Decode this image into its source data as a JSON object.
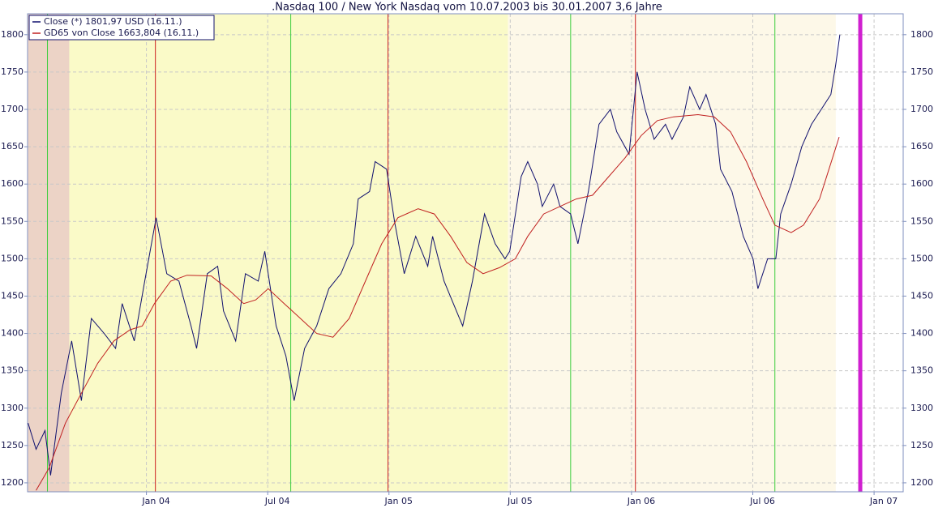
{
  "chart_data": {
    "type": "line",
    "title": ".Nasdaq 100 / New York Nasdaq vom 10.07.2003 bis 30.01.2007 3,6 Jahre",
    "xlim": [
      2003.51,
      2007.12
    ],
    "ylim": [
      1188,
      1828
    ],
    "xticks": [
      {
        "value": 2004,
        "label": "Jan 04"
      },
      {
        "value": 2004.5,
        "label": "Jul 04"
      },
      {
        "value": 2005,
        "label": "Jan 05"
      },
      {
        "value": 2005.5,
        "label": "Jul 05"
      },
      {
        "value": 2006,
        "label": "Jan 06"
      },
      {
        "value": 2006.5,
        "label": "Jul 06"
      },
      {
        "value": 2007,
        "label": "Jan 07"
      }
    ],
    "yticks": [
      1200,
      1250,
      1300,
      1350,
      1400,
      1450,
      1500,
      1550,
      1600,
      1650,
      1700,
      1750,
      1800
    ],
    "grid": true,
    "legend": "top-left",
    "bands": [
      {
        "from": 2003.512,
        "to": 2003.682,
        "color": "#ecd3c6"
      },
      {
        "from": 2003.682,
        "to": 2005.491,
        "color": "#fafac8"
      },
      {
        "from": 2005.491,
        "to": 2006.842,
        "color": "#fdf8e8"
      }
    ],
    "vertical_lines": [
      {
        "x": 2003.592,
        "color": "#3ccd3c"
      },
      {
        "x": 2004.595,
        "color": "#3ccd3c"
      },
      {
        "x": 2005.749,
        "color": "#3ccd3c"
      },
      {
        "x": 2006.591,
        "color": "#3ccd3c"
      },
      {
        "x": 2004.037,
        "color": "#cc2020"
      },
      {
        "x": 2004.996,
        "color": "#cc2020"
      },
      {
        "x": 2006.016,
        "color": "#cc2020"
      },
      {
        "x": 2006.943,
        "color": "#d020d0"
      }
    ],
    "series": [
      {
        "name": "Close (*) 1801,97 USD (16.11.)",
        "color": "#10106e",
        "x": [
          2003.512,
          2003.545,
          2003.582,
          2003.605,
          2003.649,
          2003.692,
          2003.732,
          2003.773,
          2003.826,
          2003.873,
          2003.9,
          2003.95,
          2003.993,
          2004.04,
          2004.084,
          2004.134,
          2004.184,
          2004.207,
          2004.251,
          2004.294,
          2004.318,
          2004.368,
          2004.408,
          2004.461,
          2004.488,
          2004.535,
          2004.575,
          2004.609,
          2004.652,
          2004.702,
          2004.752,
          2004.802,
          2004.853,
          2004.873,
          2004.92,
          2004.943,
          2004.99,
          2005.023,
          2005.063,
          2005.11,
          2005.16,
          2005.18,
          2005.227,
          2005.291,
          2005.304,
          2005.344,
          2005.394,
          2005.438,
          2005.478,
          2005.498,
          2005.545,
          2005.572,
          2005.612,
          2005.632,
          2005.679,
          2005.705,
          2005.749,
          2005.779,
          2005.822,
          2005.866,
          2005.913,
          2005.939,
          2005.99,
          2006.023,
          2006.056,
          2006.093,
          2006.14,
          2006.167,
          2006.214,
          2006.24,
          2006.281,
          2006.307,
          2006.347,
          2006.367,
          2006.414,
          2006.461,
          2006.501,
          2006.521,
          2006.561,
          2006.595,
          2006.615,
          2006.658,
          2006.702,
          2006.742,
          2006.782,
          2006.822,
          2006.842,
          2006.859
        ],
        "values": [
          1280,
          1245,
          1270,
          1210,
          1320,
          1390,
          1310,
          1420,
          1400,
          1380,
          1440,
          1390,
          1470,
          1555,
          1480,
          1470,
          1410,
          1380,
          1480,
          1490,
          1430,
          1390,
          1480,
          1470,
          1510,
          1410,
          1370,
          1310,
          1380,
          1410,
          1460,
          1480,
          1520,
          1580,
          1590,
          1630,
          1620,
          1550,
          1480,
          1530,
          1490,
          1530,
          1470,
          1420,
          1410,
          1470,
          1560,
          1520,
          1500,
          1510,
          1610,
          1630,
          1600,
          1570,
          1600,
          1570,
          1560,
          1520,
          1590,
          1680,
          1700,
          1670,
          1640,
          1750,
          1700,
          1660,
          1680,
          1660,
          1690,
          1730,
          1700,
          1720,
          1680,
          1620,
          1590,
          1530,
          1500,
          1460,
          1500,
          1500,
          1560,
          1600,
          1650,
          1680,
          1700,
          1720,
          1760,
          1800
        ]
      },
      {
        "name": "GD65 von Close 1663,804 (16.11.)",
        "color": "#c02020",
        "x": [
          2003.545,
          2003.599,
          2003.666,
          2003.732,
          2003.799,
          2003.866,
          2003.933,
          2003.983,
          2004.033,
          2004.1,
          2004.167,
          2004.267,
          2004.334,
          2004.401,
          2004.451,
          2004.502,
          2004.568,
          2004.635,
          2004.702,
          2004.769,
          2004.836,
          2004.903,
          2004.97,
          2005.037,
          2005.12,
          2005.187,
          2005.254,
          2005.321,
          2005.388,
          2005.455,
          2005.521,
          2005.572,
          2005.638,
          2005.705,
          2005.772,
          2005.839,
          2005.906,
          2005.973,
          2006.04,
          2006.107,
          2006.173,
          2006.274,
          2006.341,
          2006.408,
          2006.474,
          2006.541,
          2006.591,
          2006.658,
          2006.709,
          2006.775,
          2006.856
        ],
        "values": [
          1190,
          1220,
          1280,
          1320,
          1360,
          1390,
          1405,
          1410,
          1440,
          1470,
          1478,
          1477,
          1460,
          1440,
          1445,
          1460,
          1440,
          1420,
          1400,
          1395,
          1420,
          1470,
          1520,
          1555,
          1567,
          1560,
          1530,
          1495,
          1480,
          1488,
          1500,
          1530,
          1560,
          1570,
          1580,
          1585,
          1610,
          1635,
          1665,
          1685,
          1690,
          1693,
          1690,
          1670,
          1630,
          1580,
          1545,
          1535,
          1545,
          1580,
          1663
        ]
      }
    ]
  }
}
